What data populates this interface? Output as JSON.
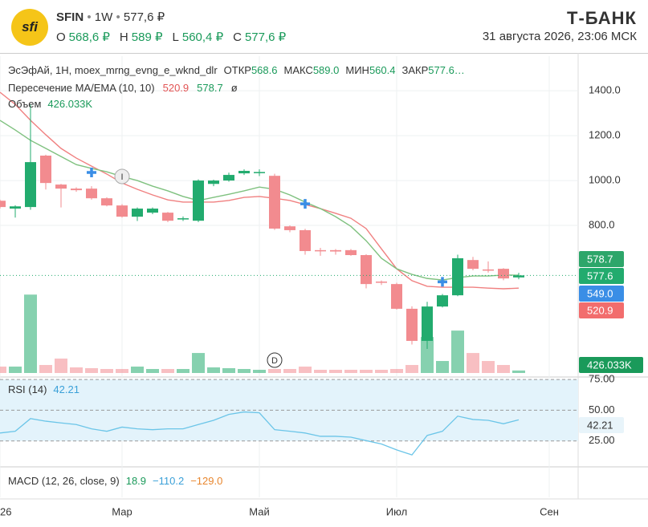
{
  "header": {
    "logo": "sfi",
    "ticker": "SFIN",
    "interval": "1W",
    "price": "577,6 ₽",
    "ohlc": [
      {
        "label": "O",
        "value": "568,6 ₽"
      },
      {
        "label": "H",
        "value": "589 ₽"
      },
      {
        "label": "L",
        "value": "560,4 ₽"
      },
      {
        "label": "C",
        "value": "577,6 ₽"
      }
    ],
    "brand": "Т‑БАНК",
    "datetime": "31 августа 2026, 23:06 МСК"
  },
  "legend": {
    "main": "ЭсЭфАй, 1H, moex_mrng_evng_e_wknd_dlr",
    "stats": [
      {
        "label": "ОТКР",
        "value": "568.6"
      },
      {
        "label": "МАКС",
        "value": "589.0"
      },
      {
        "label": "МИН",
        "value": "560.4"
      },
      {
        "label": "ЗАКР",
        "value": "577.6…"
      }
    ],
    "indicator": "Пересечение MA/EMA (10, 10)",
    "indicator_mark": "ø",
    "volume": "Объем",
    "volume_value": "426.033K",
    "rsi": "RSI (14)",
    "macd": "MACD (12, 26, close, 9)",
    "macd_values": [
      "18.9",
      "−110.2",
      "−129.0"
    ]
  },
  "chart_data": [
    {
      "type": "candlestick",
      "categories": [
        null,
        null,
        null,
        null,
        null,
        null,
        null,
        null,
        null,
        null,
        null,
        null,
        null,
        null,
        null,
        null,
        null,
        null,
        null,
        null,
        null,
        null,
        null,
        null,
        null,
        null,
        null,
        null,
        null,
        null,
        null,
        null,
        null,
        null,
        null
      ],
      "open": [
        910,
        875,
        882,
        1111,
        982,
        964,
        964,
        921,
        889,
        839,
        857,
        857,
        829,
        821,
        985,
        1000,
        1032,
        1036,
        1021,
        796,
        779,
        690,
        690,
        690,
        668,
        550,
        539,
        429,
        286,
        439,
        489,
        646,
        604,
        607,
        568.6
      ],
      "high": [
        915,
        890,
        1340,
        1115,
        985,
        970,
        975,
        925,
        895,
        880,
        880,
        860,
        840,
        1005,
        1004,
        1035,
        1050,
        1050,
        1030,
        800,
        785,
        700,
        695,
        695,
        672,
        555,
        545,
        440,
        460,
        495,
        670,
        660,
        640,
        610,
        589
      ],
      "low": [
        875,
        835,
        870,
        960,
        880,
        950,
        915,
        885,
        835,
        820,
        850,
        815,
        820,
        815,
        975,
        995,
        1025,
        1020,
        780,
        770,
        670,
        665,
        670,
        665,
        520,
        535,
        425,
        270,
        250,
        435,
        485,
        600,
        590,
        556,
        560.4
      ],
      "close": [
        882,
        885,
        1082,
        989,
        964,
        957,
        921,
        889,
        839,
        875,
        875,
        821,
        832,
        1000,
        1000,
        1025,
        1043,
        1038,
        786,
        779,
        686,
        686,
        684,
        668,
        539,
        546,
        429,
        286,
        439,
        489,
        654,
        607,
        600,
        564,
        577.6
      ],
      "up_color": "#22ab6e",
      "down_color": "#f28b8f",
      "series": [
        {
          "color": "#f08080",
          "values": [
            1393,
            1339,
            1268,
            1204,
            1143,
            1100,
            1064,
            1029,
            989,
            961,
            936,
            914,
            904,
            904,
            904,
            911,
            925,
            929,
            921,
            911,
            893,
            875,
            854,
            832,
            786,
            696,
            607,
            554,
            529,
            525,
            525,
            525,
            521,
            518,
            520.9
          ]
        },
        {
          "color": "#7fc17f",
          "values": [
            1268,
            1225,
            1179,
            1143,
            1107,
            1071,
            1054,
            1039,
            1018,
            1000,
            975,
            954,
            929,
            911,
            925,
            939,
            954,
            971,
            961,
            936,
            904,
            875,
            839,
            796,
            732,
            654,
            607,
            582,
            564,
            557,
            568,
            575,
            575,
            579,
            578.7
          ]
        }
      ],
      "signals": {
        "x": [
          6,
          20,
          29
        ],
        "values": [
          1036,
          896,
          549
        ],
        "label": "549.0",
        "color": "#3a8ee6"
      },
      "events": [
        {
          "label": "I",
          "x": 8
        },
        {
          "label": "D",
          "x": 18
        }
      ],
      "ylim": [
        143,
        1536
      ],
      "yticks": [
        {
          "value": 800,
          "label": "800.0"
        },
        {
          "value": 1000,
          "label": "1000.0"
        },
        {
          "value": 1200,
          "label": "1200.0"
        },
        {
          "value": 1400,
          "label": "1400.0"
        }
      ],
      "xticks": [
        {
          "value": 0,
          "label": "26"
        },
        {
          "value": 8,
          "label": "Мар"
        },
        {
          "value": 17,
          "label": "Май"
        },
        {
          "value": 26,
          "label": "Июл"
        },
        {
          "value": 36,
          "label": "Сен"
        }
      ],
      "grid": true
    },
    {
      "type": "bar",
      "values": [
        1088,
        1088,
        13328,
        1360,
        2448,
        952,
        816,
        680,
        680,
        1088,
        680,
        680,
        680,
        3400,
        952,
        816,
        680,
        544,
        680,
        680,
        1088,
        544,
        544,
        544,
        544,
        544,
        680,
        1360,
        6120,
        2040,
        7208,
        3400,
        2040,
        1360,
        426.033
      ],
      "ylim": [
        0,
        15000
      ]
    },
    {
      "type": "line",
      "color": "#6bc5e8",
      "values": [
        31.5,
        32.9,
        43.2,
        41.1,
        39.7,
        38.4,
        34.9,
        32.9,
        36.3,
        34.9,
        34.2,
        34.9,
        34.9,
        38.4,
        41.8,
        46.6,
        48.6,
        47.9,
        34.2,
        32.9,
        31.5,
        28.8,
        28.8,
        28.1,
        25.3,
        22.6,
        17.8,
        13.7,
        29.5,
        32.9,
        45.2,
        42.5,
        41.8,
        39,
        42.21
      ],
      "ylim": [
        4,
        77
      ],
      "yticks": [
        {
          "value": 25,
          "label": "25.00"
        },
        {
          "value": 50,
          "label": "50.00"
        },
        {
          "value": 75,
          "label": "75.00"
        }
      ]
    }
  ]
}
